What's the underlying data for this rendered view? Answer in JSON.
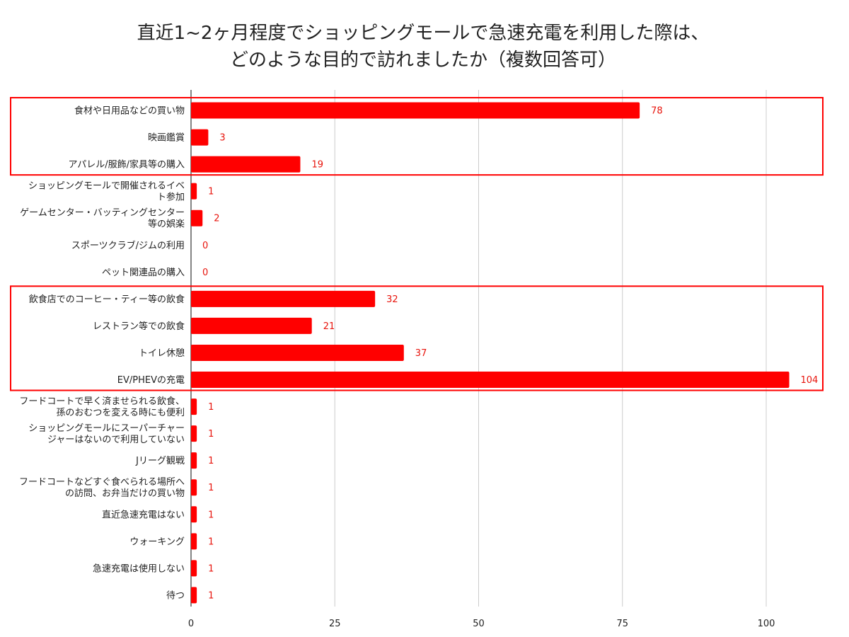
{
  "colors": {
    "bar": "#ff0000",
    "data_label": "#e8140c",
    "highlight_box": "#ff0000",
    "grid": "#cccccc",
    "axis": "#333333",
    "text": "#222222"
  },
  "chart_data": {
    "type": "bar",
    "orientation": "horizontal",
    "title_lines": [
      "直近1~2ヶ月程度でショッピングモールで急速充電を利用した際は、",
      "どのような目的で訪れましたか（複数回答可）"
    ],
    "xlabel": "",
    "ylabel": "",
    "xlim": [
      0,
      110
    ],
    "x_ticks": [
      0,
      25,
      50,
      75,
      100
    ],
    "grid": "vertical",
    "legend": "none",
    "categories": [
      [
        "食材や日用品などの買い物"
      ],
      [
        "映画鑑賞"
      ],
      [
        "アパレル/服飾/家具等の購入"
      ],
      [
        "ショッピングモールで開催されるイベ",
        "ト参加"
      ],
      [
        "ゲームセンター・バッティングセンター",
        "等の娯楽"
      ],
      [
        "スポーツクラブ/ジムの利用"
      ],
      [
        "ペット関連品の購入"
      ],
      [
        "飲食店でのコーヒー・ティー等の飲食"
      ],
      [
        "レストラン等での飲食"
      ],
      [
        "トイレ休憩"
      ],
      [
        "EV/PHEVの充電"
      ],
      [
        "フードコートで早く済ませられる飲食、",
        "孫のおむつを変える時にも便利"
      ],
      [
        "ショッピングモールにスーパーチャー",
        "ジャーはないので利用していない"
      ],
      [
        "Jリーグ観戦"
      ],
      [
        "フードコートなどすぐ食べられる場所へ",
        "の訪問、お弁当だけの買い物"
      ],
      [
        "直近急速充電はない"
      ],
      [
        "ウォーキング"
      ],
      [
        "急速充電は使用しない"
      ],
      [
        "待つ"
      ]
    ],
    "values": [
      78,
      3,
      19,
      1,
      2,
      0,
      0,
      32,
      21,
      37,
      104,
      1,
      1,
      1,
      1,
      1,
      1,
      1,
      1
    ],
    "highlight_groups": [
      {
        "from_index": 0,
        "to_index": 2
      },
      {
        "from_index": 7,
        "to_index": 10
      }
    ]
  }
}
